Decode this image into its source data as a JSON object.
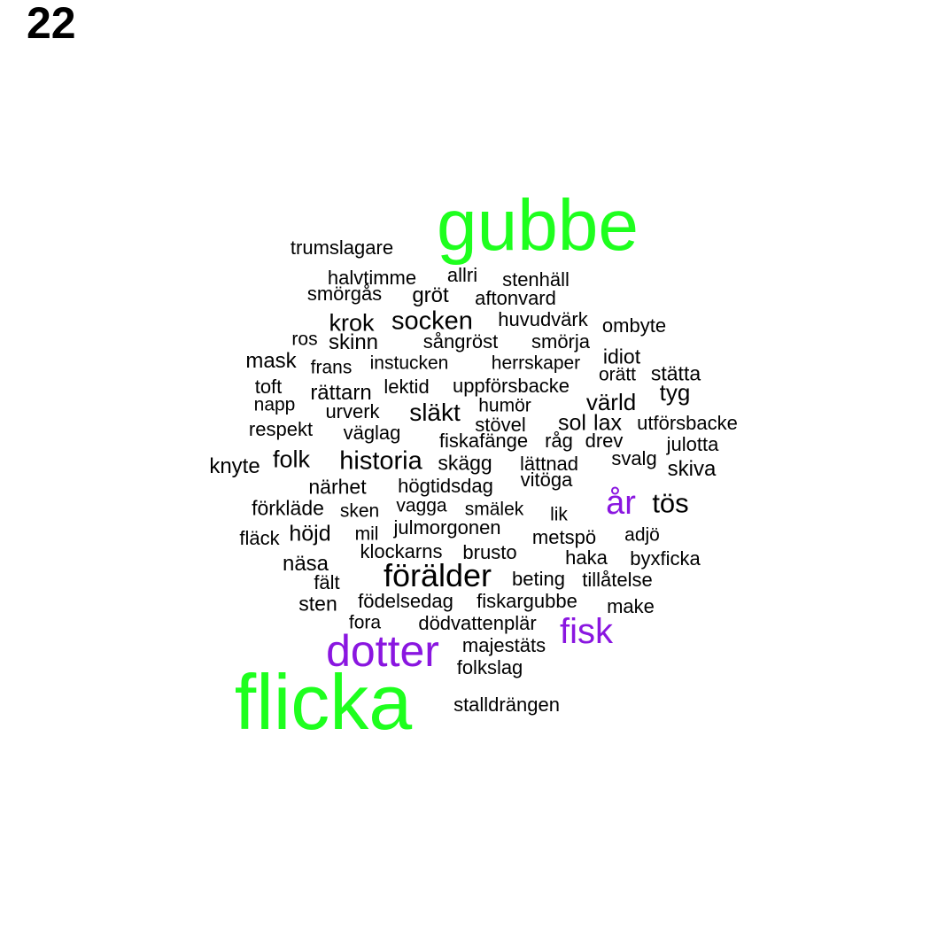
{
  "title": "22",
  "colors": {
    "big": "#1eff1e",
    "mid": "#8a16e0",
    "small": "#000000"
  },
  "words": [
    "gubbe",
    "flicka",
    "dotter",
    "fisk",
    "år",
    "trumslagare",
    "halvtimme",
    "allri",
    "stenhäll",
    "smörgås",
    "gröt",
    "aftonvard",
    "krok",
    "socken",
    "huvudvärk",
    "ombyte",
    "ros",
    "skinn",
    "sångröst",
    "smörja",
    "mask",
    "frans",
    "instucken",
    "herrskaper",
    "idiot",
    "orätt",
    "stätta",
    "toft",
    "rättarn",
    "lektid",
    "uppförsbacke",
    "tyg",
    "värld",
    "napp",
    "humör",
    "urverk",
    "släkt",
    "stövel",
    "sol",
    "lax",
    "utförsbacke",
    "respekt",
    "väglag",
    "fiskafänge",
    "råg",
    "drev",
    "julotta",
    "knyte",
    "folk",
    "historia",
    "skägg",
    "lättnad",
    "svalg",
    "skiva",
    "vitöga",
    "närhet",
    "högtidsdag",
    "tös",
    "förkläde",
    "sken",
    "vagga",
    "smälek",
    "lik",
    "fläck",
    "höjd",
    "mil",
    "julmorgonen",
    "metspö",
    "adjö",
    "klockarns",
    "brusto",
    "näsa",
    "haka",
    "byxficka",
    "förälder",
    "fält",
    "beting",
    "tillåtelse",
    "sten",
    "födelsedag",
    "fiskargubbe",
    "make",
    "fora",
    "dödvattenplär",
    "majestäts",
    "folkslag",
    "stalldrängen"
  ]
}
